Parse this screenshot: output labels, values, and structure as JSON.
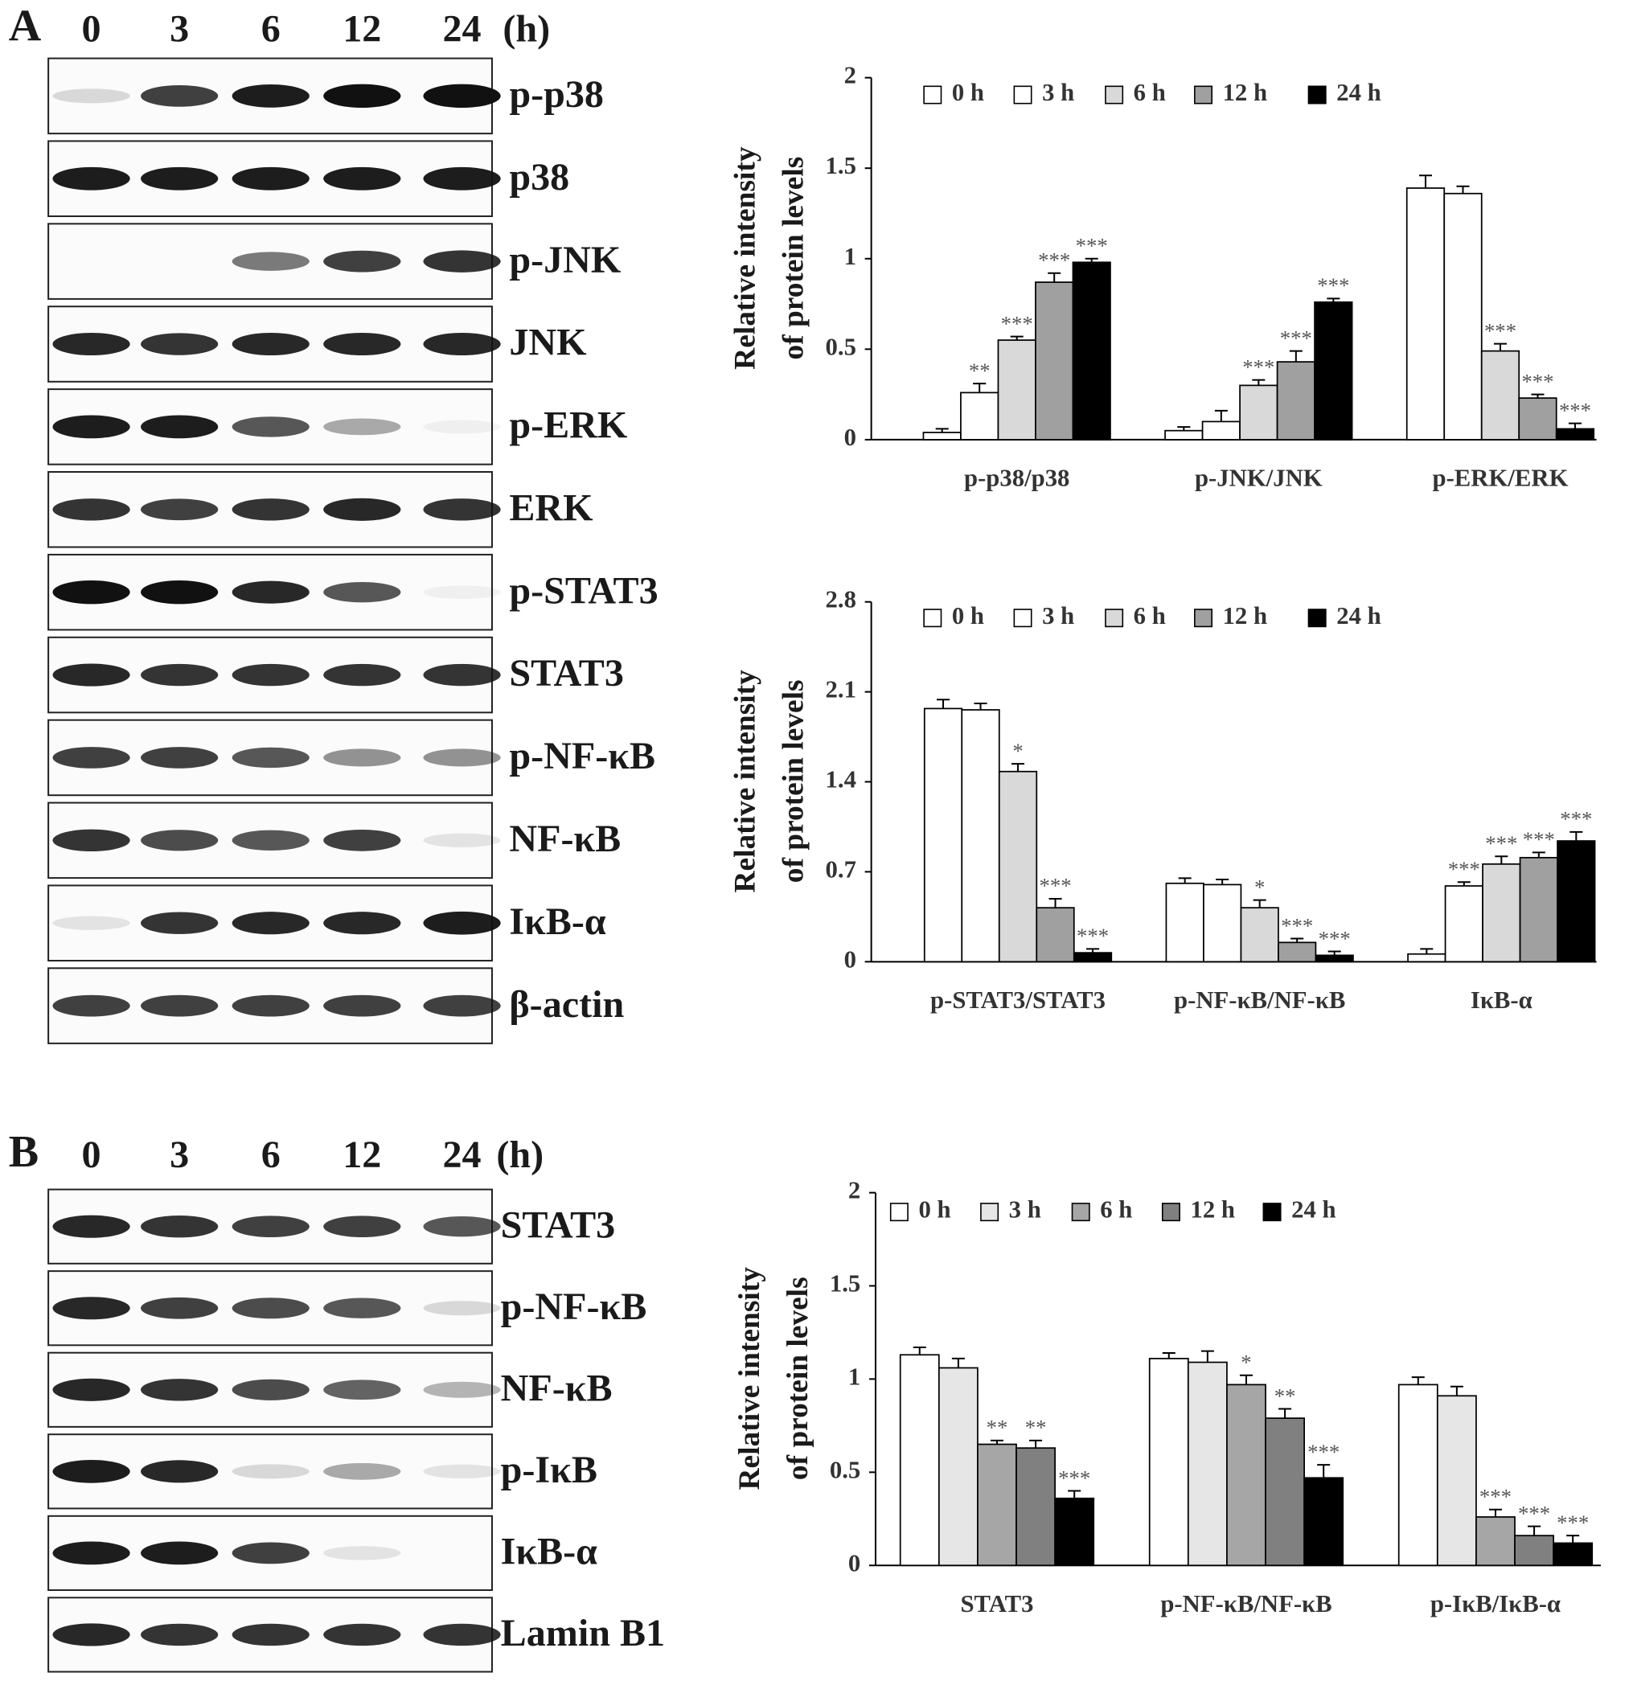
{
  "panels": [
    {
      "label": "A",
      "lanes": [
        "0",
        "3",
        "6",
        "12",
        "24"
      ],
      "unit": "(h)",
      "blots": [
        "p-p38",
        "p38",
        "p-JNK",
        "JNK",
        "p-ERK",
        "ERK",
        "p-STAT3",
        "STAT3",
        "p-NF-κB",
        "NF-κB",
        "IκB-α",
        "β-actin"
      ]
    },
    {
      "label": "B",
      "lanes": [
        "0",
        "3",
        "6",
        "12",
        "24"
      ],
      "unit": "(h)",
      "blots": [
        "STAT3",
        "p-NF-κB",
        "NF-κB",
        "p-IκB",
        "IκB-α",
        "Lamin B1"
      ]
    }
  ],
  "chart_data": [
    {
      "type": "bar",
      "ylabel": [
        "Relative intensity",
        "of protein levels"
      ],
      "categories": [
        "p-p38/p38",
        "p-JNK/JNK",
        "p-ERK/ERK"
      ],
      "ylim": [
        0,
        2
      ],
      "yticks": [
        0,
        0.5,
        1,
        1.5,
        2
      ],
      "legend": "top",
      "series": [
        {
          "name": "0 h",
          "color": "#ffffff",
          "values": [
            0.04,
            0.05,
            1.39
          ],
          "errors": [
            0.02,
            0.02,
            0.07
          ],
          "significance": [
            null,
            null,
            null
          ]
        },
        {
          "name": "3 h",
          "color": "#ffffff",
          "values": [
            0.26,
            0.1,
            1.36
          ],
          "errors": [
            0.05,
            0.06,
            0.04
          ],
          "significance": [
            "**",
            null,
            null
          ]
        },
        {
          "name": "6 h",
          "color": "#d9d9d9",
          "values": [
            0.55,
            0.3,
            0.49
          ],
          "errors": [
            0.02,
            0.03,
            0.04
          ],
          "significance": [
            "***",
            "***",
            "***"
          ]
        },
        {
          "name": "12 h",
          "color": "#a0a0a0",
          "values": [
            0.87,
            0.43,
            0.23
          ],
          "errors": [
            0.05,
            0.06,
            0.02
          ],
          "significance": [
            "***",
            "***",
            "***"
          ]
        },
        {
          "name": "24 h",
          "color": "#000000",
          "values": [
            0.98,
            0.76,
            0.06
          ],
          "errors": [
            0.02,
            0.02,
            0.03
          ],
          "significance": [
            "***",
            "***",
            "***"
          ]
        }
      ]
    },
    {
      "type": "bar",
      "ylabel": [
        "Relative intensity",
        "of protein levels"
      ],
      "categories": [
        "p-STAT3/STAT3",
        "p-NF-κB/NF-κB",
        "IκB-α"
      ],
      "ylim": [
        0,
        2.8
      ],
      "yticks": [
        0,
        0.7,
        1.4,
        2.1,
        2.8
      ],
      "legend": "top",
      "series": [
        {
          "name": "0 h",
          "color": "#ffffff",
          "values": [
            1.97,
            0.61,
            0.06
          ],
          "errors": [
            0.07,
            0.04,
            0.04
          ],
          "significance": [
            null,
            null,
            null
          ]
        },
        {
          "name": "3 h",
          "color": "#ffffff",
          "values": [
            1.96,
            0.6,
            0.59
          ],
          "errors": [
            0.05,
            0.04,
            0.03
          ],
          "significance": [
            null,
            null,
            "***"
          ]
        },
        {
          "name": "6 h",
          "color": "#d9d9d9",
          "values": [
            1.48,
            0.42,
            0.76
          ],
          "errors": [
            0.06,
            0.06,
            0.06
          ],
          "significance": [
            "*",
            "*",
            "***"
          ]
        },
        {
          "name": "12 h",
          "color": "#a0a0a0",
          "values": [
            0.42,
            0.15,
            0.81
          ],
          "errors": [
            0.07,
            0.03,
            0.04
          ],
          "significance": [
            "***",
            "***",
            "***"
          ]
        },
        {
          "name": "24 h",
          "color": "#000000",
          "values": [
            0.07,
            0.05,
            0.94
          ],
          "errors": [
            0.03,
            0.03,
            0.07
          ],
          "significance": [
            "***",
            "***",
            "***"
          ]
        }
      ]
    },
    {
      "type": "bar",
      "ylabel": [
        "Relative intensity",
        "of protein levels"
      ],
      "categories": [
        "STAT3",
        "p-NF-κB/NF-κB",
        "p-IκB/IκB-α"
      ],
      "ylim": [
        0,
        2
      ],
      "yticks": [
        0,
        0.5,
        1,
        1.5,
        2
      ],
      "legend": "top",
      "series": [
        {
          "name": "0 h",
          "color": "#ffffff",
          "values": [
            1.13,
            1.11,
            0.97
          ],
          "errors": [
            0.04,
            0.03,
            0.04
          ],
          "significance": [
            null,
            null,
            null
          ]
        },
        {
          "name": "3 h",
          "color": "#e6e6e6",
          "values": [
            1.06,
            1.09,
            0.91
          ],
          "errors": [
            0.05,
            0.06,
            0.05
          ],
          "significance": [
            null,
            null,
            null
          ]
        },
        {
          "name": "6 h",
          "color": "#a6a6a6",
          "values": [
            0.65,
            0.97,
            0.26
          ],
          "errors": [
            0.02,
            0.05,
            0.04
          ],
          "significance": [
            "**",
            "*",
            "***"
          ]
        },
        {
          "name": "12 h",
          "color": "#808080",
          "values": [
            0.63,
            0.79,
            0.16
          ],
          "errors": [
            0.04,
            0.05,
            0.05
          ],
          "significance": [
            "**",
            "**",
            "***"
          ]
        },
        {
          "name": "24 h",
          "color": "#000000",
          "values": [
            0.36,
            0.47,
            0.12
          ],
          "errors": [
            0.04,
            0.07,
            0.04
          ],
          "significance": [
            "***",
            "***",
            "***"
          ]
        }
      ]
    }
  ]
}
